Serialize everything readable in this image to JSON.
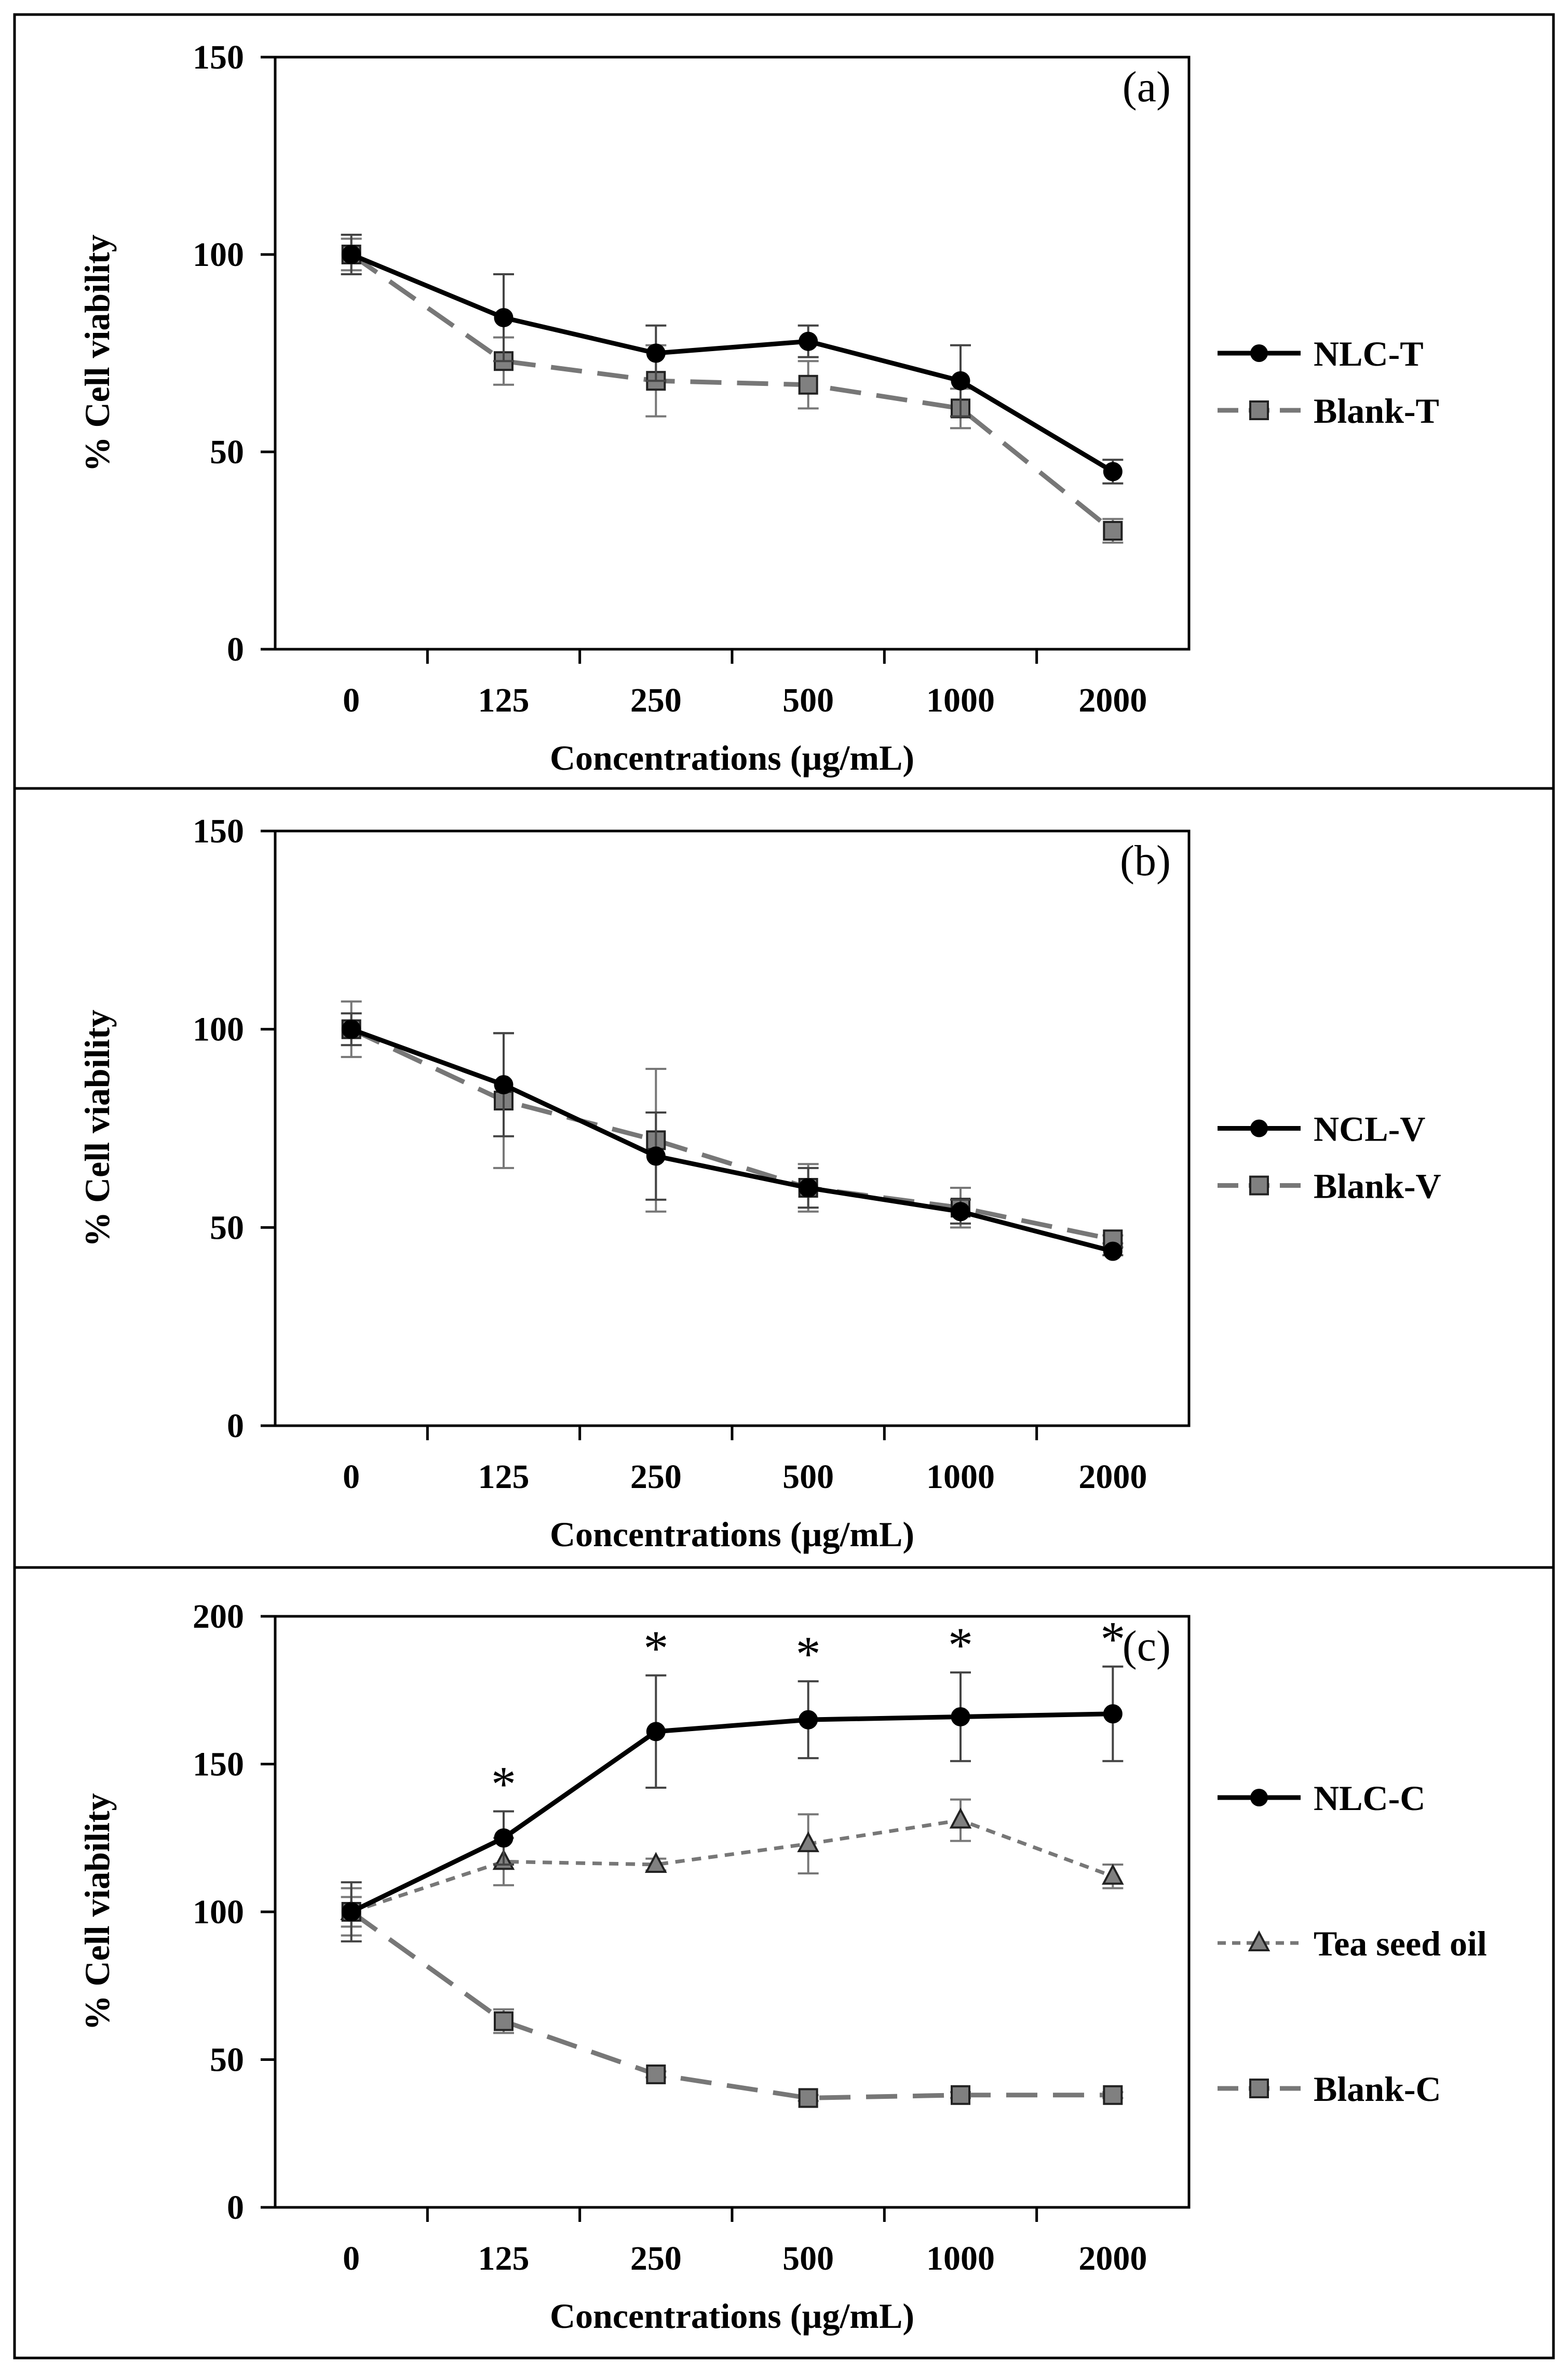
{
  "colors": {
    "series_black": "#000000",
    "series_gray": "#777777",
    "marker_gray": "#808080",
    "frame": "#000000",
    "background": "#ffffff"
  },
  "chart_data": [
    {
      "id": "a",
      "type": "line",
      "panel_label": "(a)",
      "xlabel": "Concentrations (µg/mL)",
      "ylabel": "% Cell viability",
      "categories": [
        "0",
        "125",
        "250",
        "500",
        "1000",
        "2000"
      ],
      "ylim": [
        0,
        150
      ],
      "yticks": [
        0,
        50,
        100,
        150
      ],
      "grid": false,
      "legend_position": "right",
      "series": [
        {
          "name": "NLC-T",
          "marker": "circle",
          "line_style": "solid",
          "color": "#000000",
          "values": [
            100,
            84,
            75,
            78,
            68,
            45
          ],
          "errors": [
            5,
            11,
            7,
            4,
            9,
            3
          ]
        },
        {
          "name": "Blank-T",
          "marker": "square",
          "line_style": "dashed",
          "color": "#777777",
          "values": [
            100,
            73,
            68,
            67,
            61,
            30
          ],
          "errors": [
            4,
            6,
            9,
            6,
            5,
            3
          ]
        }
      ],
      "annotations": []
    },
    {
      "id": "b",
      "type": "line",
      "panel_label": "(b)",
      "xlabel": "Concentrations (µg/mL)",
      "ylabel": "% Cell viability",
      "categories": [
        "0",
        "125",
        "250",
        "500",
        "1000",
        "2000"
      ],
      "ylim": [
        0,
        150
      ],
      "yticks": [
        0,
        50,
        100,
        150
      ],
      "grid": false,
      "legend_position": "right",
      "series": [
        {
          "name": "NCL-V",
          "marker": "circle",
          "line_style": "solid",
          "color": "#000000",
          "values": [
            100,
            86,
            68,
            60,
            54,
            44
          ],
          "errors": [
            4,
            13,
            11,
            5,
            3,
            1
          ]
        },
        {
          "name": "Blank-V",
          "marker": "square",
          "line_style": "dashed",
          "color": "#777777",
          "values": [
            100,
            82,
            72,
            60,
            55,
            47
          ],
          "errors": [
            7,
            17,
            18,
            6,
            5,
            1
          ]
        }
      ],
      "annotations": []
    },
    {
      "id": "c",
      "type": "line",
      "panel_label": "(c)",
      "xlabel": "Concentrations (µg/mL)",
      "ylabel": "% Cell viability",
      "categories": [
        "0",
        "125",
        "250",
        "500",
        "1000",
        "2000"
      ],
      "ylim": [
        0,
        200
      ],
      "yticks": [
        0,
        50,
        100,
        150,
        200
      ],
      "grid": false,
      "legend_position": "right",
      "series": [
        {
          "name": "NLC-C",
          "marker": "circle",
          "line_style": "solid",
          "color": "#000000",
          "values": [
            100,
            125,
            161,
            165,
            166,
            167
          ],
          "errors": [
            10,
            9,
            19,
            13,
            15,
            16
          ]
        },
        {
          "name": "Tea seed oil",
          "marker": "triangle",
          "line_style": "dotted",
          "color": "#777777",
          "values": [
            100,
            117,
            116,
            123,
            131,
            112
          ],
          "errors": [
            8,
            8,
            2,
            10,
            7,
            4
          ]
        },
        {
          "name": "Blank-C",
          "marker": "square",
          "line_style": "dashed",
          "color": "#777777",
          "values": [
            100,
            63,
            45,
            37,
            38,
            38
          ],
          "errors": [
            5,
            4,
            1,
            1,
            1,
            1
          ]
        }
      ],
      "annotations": [
        {
          "text": "*",
          "category": "125",
          "above_series": "NLC-C"
        },
        {
          "text": "*",
          "category": "250",
          "above_series": "NLC-C"
        },
        {
          "text": "*",
          "category": "500",
          "above_series": "NLC-C"
        },
        {
          "text": "*",
          "category": "1000",
          "above_series": "NLC-C"
        },
        {
          "text": "*",
          "category": "2000",
          "above_series": "NLC-C"
        }
      ]
    }
  ]
}
